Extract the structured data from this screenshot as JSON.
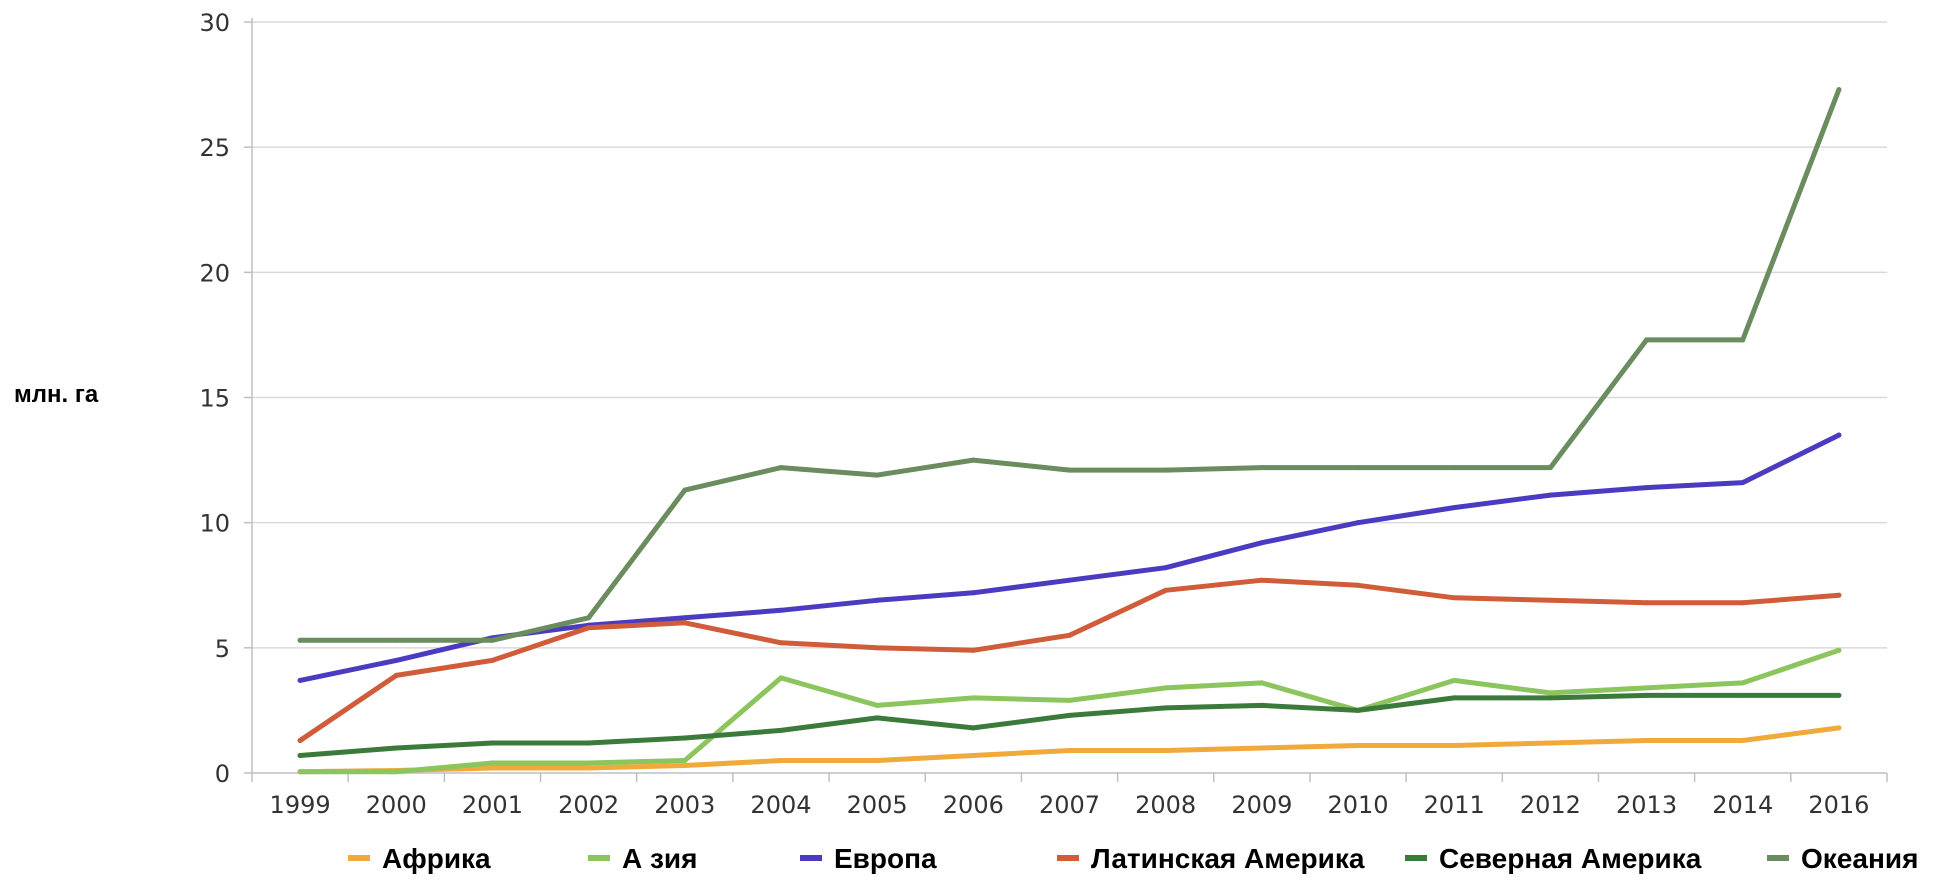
{
  "chart_data": {
    "type": "line",
    "ylabel": "млн. га",
    "xlabel": "",
    "title": "",
    "ylim": [
      0,
      30
    ],
    "yticks": [
      0,
      5,
      10,
      15,
      20,
      25,
      30
    ],
    "grid": true,
    "legend_position": "bottom",
    "x": [
      "1999",
      "2000",
      "2001",
      "2002",
      "2003",
      "2004",
      "2005",
      "2006",
      "2007",
      "2008",
      "2009",
      "2010",
      "2011",
      "2012",
      "2013",
      "2014",
      "2016"
    ],
    "series": [
      {
        "name": "Африка",
        "color": "#f0a93b",
        "values": [
          0.05,
          0.1,
          0.2,
          0.2,
          0.3,
          0.5,
          0.5,
          0.7,
          0.9,
          0.9,
          1.0,
          1.1,
          1.1,
          1.2,
          1.3,
          1.3,
          1.8
        ]
      },
      {
        "name": "А зия",
        "color": "#8cc45e",
        "values": [
          0.05,
          0.05,
          0.4,
          0.4,
          0.5,
          3.8,
          2.7,
          3.0,
          2.9,
          3.4,
          3.6,
          2.5,
          3.7,
          3.2,
          3.4,
          3.6,
          4.9
        ]
      },
      {
        "name": "Европа",
        "color": "#4b3bc1",
        "values": [
          3.7,
          4.5,
          5.4,
          5.9,
          6.2,
          6.5,
          6.9,
          7.2,
          7.7,
          8.2,
          9.2,
          10.0,
          10.6,
          11.1,
          11.4,
          11.6,
          13.5
        ]
      },
      {
        "name": "Латинская Америка",
        "color": "#d05c3a",
        "values": [
          1.3,
          3.9,
          4.5,
          5.8,
          6.0,
          5.2,
          5.0,
          4.9,
          5.5,
          7.3,
          7.7,
          7.5,
          7.0,
          6.9,
          6.8,
          6.8,
          7.1
        ]
      },
      {
        "name": "Северная Америка",
        "color": "#3c7a3c",
        "values": [
          0.7,
          1.0,
          1.2,
          1.2,
          1.4,
          1.7,
          2.2,
          1.8,
          2.3,
          2.6,
          2.7,
          2.5,
          3.0,
          3.0,
          3.1,
          3.1,
          3.1
        ]
      },
      {
        "name": "Океания",
        "color": "#6a8c5e",
        "values": [
          5.3,
          5.3,
          5.3,
          6.2,
          11.3,
          12.2,
          11.9,
          12.5,
          12.1,
          12.1,
          12.2,
          12.2,
          12.2,
          12.2,
          17.3,
          17.3,
          27.3
        ]
      }
    ]
  }
}
